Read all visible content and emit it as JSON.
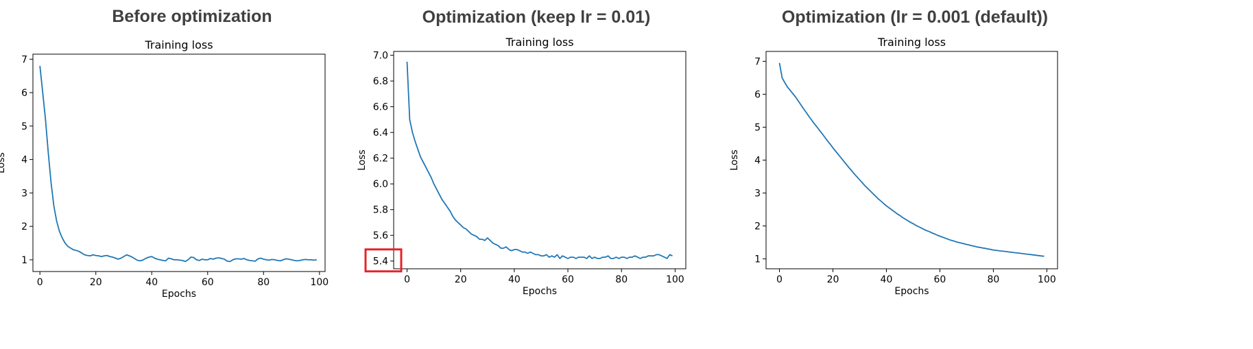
{
  "panels": [
    {
      "heading": "Before optimization"
    },
    {
      "heading": "Optimization (keep lr = 0.01)"
    },
    {
      "heading": "Optimization (lr = 0.001 (default))"
    }
  ],
  "colors": {
    "line": "#1f77b4",
    "highlight": "#e3242b",
    "axis": "#000000"
  },
  "chart_data": [
    {
      "type": "line",
      "title": "Training loss",
      "xlabel": "Epochs",
      "ylabel": "Loss",
      "xlim": [
        -2.5,
        102
      ],
      "ylim": [
        0.65,
        7.15
      ],
      "xticks": [
        0,
        20,
        40,
        60,
        80,
        100
      ],
      "yticks": [
        1,
        2,
        3,
        4,
        5,
        6,
        7
      ],
      "series": [
        {
          "x": [
            0,
            1,
            2,
            3,
            4,
            5,
            6,
            7,
            8,
            9,
            10,
            11,
            12,
            13,
            14,
            15,
            16,
            17,
            18,
            19,
            20,
            21,
            22,
            23,
            24,
            25,
            26,
            27,
            28,
            29,
            30,
            31,
            32,
            33,
            34,
            35,
            36,
            37,
            38,
            39,
            40,
            41,
            42,
            43,
            44,
            45,
            46,
            47,
            48,
            49,
            50,
            51,
            52,
            53,
            54,
            55,
            56,
            57,
            58,
            59,
            60,
            61,
            62,
            63,
            64,
            65,
            66,
            67,
            68,
            69,
            70,
            71,
            72,
            73,
            74,
            75,
            76,
            77,
            78,
            79,
            80,
            81,
            82,
            83,
            84,
            85,
            86,
            87,
            88,
            89,
            90,
            91,
            92,
            93,
            94,
            95,
            96,
            97,
            98,
            99
          ],
          "y": [
            6.8,
            6.0,
            5.2,
            4.2,
            3.3,
            2.6,
            2.15,
            1.85,
            1.65,
            1.5,
            1.4,
            1.35,
            1.3,
            1.28,
            1.25,
            1.2,
            1.15,
            1.13,
            1.12,
            1.15,
            1.13,
            1.12,
            1.1,
            1.12,
            1.13,
            1.1,
            1.08,
            1.05,
            1.02,
            1.05,
            1.1,
            1.15,
            1.12,
            1.08,
            1.03,
            0.98,
            0.97,
            1.0,
            1.05,
            1.08,
            1.1,
            1.05,
            1.02,
            1.0,
            0.98,
            0.97,
            1.05,
            1.03,
            1.0,
            1.0,
            0.99,
            0.98,
            0.95,
            1.0,
            1.08,
            1.07,
            1.0,
            0.98,
            1.02,
            1.0,
            1.0,
            1.04,
            1.02,
            1.05,
            1.06,
            1.04,
            1.02,
            0.96,
            0.95,
            1.0,
            1.03,
            1.03,
            1.02,
            1.04,
            1.0,
            0.98,
            0.97,
            0.96,
            1.03,
            1.05,
            1.02,
            1.0,
            0.99,
            1.01,
            1.0,
            0.98,
            0.97,
            1.0,
            1.03,
            1.02,
            1.0,
            0.98,
            0.97,
            0.98,
            1.0,
            1.01,
            1.0,
            1.0,
            0.99,
            1.0
          ]
        }
      ]
    },
    {
      "type": "line",
      "title": "Training loss",
      "xlabel": "Epochs",
      "ylabel": "Loss",
      "xlim": [
        -5,
        104
      ],
      "ylim": [
        5.34,
        7.03
      ],
      "xticks": [
        0,
        20,
        40,
        60,
        80,
        100
      ],
      "yticks": [
        5.4,
        5.6,
        5.8,
        6.0,
        6.2,
        6.4,
        6.6,
        6.8,
        7.0
      ],
      "series": [
        {
          "x": [
            0,
            1,
            2,
            3,
            4,
            5,
            6,
            7,
            8,
            9,
            10,
            11,
            12,
            13,
            14,
            15,
            16,
            17,
            18,
            19,
            20,
            21,
            22,
            23,
            24,
            25,
            26,
            27,
            28,
            29,
            30,
            31,
            32,
            33,
            34,
            35,
            36,
            37,
            38,
            39,
            40,
            41,
            42,
            43,
            44,
            45,
            46,
            47,
            48,
            49,
            50,
            51,
            52,
            53,
            54,
            55,
            56,
            57,
            58,
            59,
            60,
            61,
            62,
            63,
            64,
            65,
            66,
            67,
            68,
            69,
            70,
            71,
            72,
            73,
            74,
            75,
            76,
            77,
            78,
            79,
            80,
            81,
            82,
            83,
            84,
            85,
            86,
            87,
            88,
            89,
            90,
            91,
            92,
            93,
            94,
            95,
            96,
            97,
            98,
            99
          ],
          "y": [
            6.95,
            6.5,
            6.4,
            6.33,
            6.27,
            6.21,
            6.17,
            6.13,
            6.09,
            6.05,
            6.0,
            5.96,
            5.92,
            5.88,
            5.85,
            5.82,
            5.79,
            5.75,
            5.72,
            5.7,
            5.68,
            5.66,
            5.65,
            5.63,
            5.61,
            5.6,
            5.59,
            5.57,
            5.57,
            5.56,
            5.58,
            5.56,
            5.54,
            5.53,
            5.52,
            5.5,
            5.5,
            5.51,
            5.49,
            5.48,
            5.49,
            5.49,
            5.48,
            5.47,
            5.47,
            5.46,
            5.47,
            5.46,
            5.45,
            5.45,
            5.44,
            5.44,
            5.45,
            5.43,
            5.44,
            5.43,
            5.45,
            5.42,
            5.44,
            5.43,
            5.42,
            5.43,
            5.43,
            5.42,
            5.43,
            5.43,
            5.43,
            5.42,
            5.44,
            5.42,
            5.43,
            5.42,
            5.42,
            5.43,
            5.43,
            5.44,
            5.42,
            5.42,
            5.43,
            5.42,
            5.43,
            5.43,
            5.42,
            5.43,
            5.43,
            5.44,
            5.43,
            5.42,
            5.43,
            5.43,
            5.44,
            5.44,
            5.44,
            5.45,
            5.45,
            5.44,
            5.43,
            5.42,
            5.45,
            5.44
          ]
        }
      ],
      "annotations": [
        {
          "type": "highlight-box",
          "label": "5.4"
        }
      ]
    },
    {
      "type": "line",
      "title": "Training loss",
      "xlabel": "Epochs",
      "ylabel": "Loss",
      "xlim": [
        -5,
        104
      ],
      "ylim": [
        0.7,
        7.3
      ],
      "xticks": [
        0,
        20,
        40,
        60,
        80,
        100
      ],
      "yticks": [
        1,
        2,
        3,
        4,
        5,
        6,
        7
      ],
      "series": [
        {
          "x": [
            0,
            1,
            2,
            3,
            4,
            5,
            6,
            7,
            8,
            9,
            10,
            11,
            12,
            13,
            14,
            15,
            16,
            17,
            18,
            19,
            20,
            21,
            22,
            23,
            24,
            25,
            26,
            27,
            28,
            29,
            30,
            31,
            32,
            33,
            34,
            35,
            36,
            37,
            38,
            39,
            40,
            41,
            42,
            43,
            44,
            45,
            46,
            47,
            48,
            49,
            50,
            51,
            52,
            53,
            54,
            55,
            56,
            57,
            58,
            59,
            60,
            61,
            62,
            63,
            64,
            65,
            66,
            67,
            68,
            69,
            70,
            71,
            72,
            73,
            74,
            75,
            76,
            77,
            78,
            79,
            80,
            81,
            82,
            83,
            84,
            85,
            86,
            87,
            88,
            89,
            90,
            91,
            92,
            93,
            94,
            95,
            96,
            97,
            98,
            99
          ],
          "y": [
            6.95,
            6.5,
            6.35,
            6.22,
            6.12,
            6.02,
            5.92,
            5.8,
            5.68,
            5.56,
            5.45,
            5.33,
            5.22,
            5.11,
            5.01,
            4.9,
            4.8,
            4.69,
            4.58,
            4.48,
            4.37,
            4.27,
            4.17,
            4.07,
            3.97,
            3.87,
            3.77,
            3.68,
            3.58,
            3.49,
            3.4,
            3.31,
            3.22,
            3.14,
            3.06,
            2.98,
            2.9,
            2.82,
            2.75,
            2.68,
            2.61,
            2.55,
            2.49,
            2.43,
            2.37,
            2.32,
            2.26,
            2.21,
            2.16,
            2.11,
            2.07,
            2.02,
            1.98,
            1.94,
            1.9,
            1.86,
            1.83,
            1.79,
            1.76,
            1.72,
            1.69,
            1.66,
            1.63,
            1.6,
            1.57,
            1.55,
            1.52,
            1.5,
            1.48,
            1.46,
            1.44,
            1.42,
            1.4,
            1.38,
            1.36,
            1.35,
            1.33,
            1.32,
            1.3,
            1.29,
            1.27,
            1.26,
            1.25,
            1.24,
            1.23,
            1.22,
            1.21,
            1.2,
            1.19,
            1.18,
            1.17,
            1.16,
            1.15,
            1.14,
            1.13,
            1.12,
            1.11,
            1.1,
            1.09,
            1.08
          ]
        }
      ]
    }
  ]
}
